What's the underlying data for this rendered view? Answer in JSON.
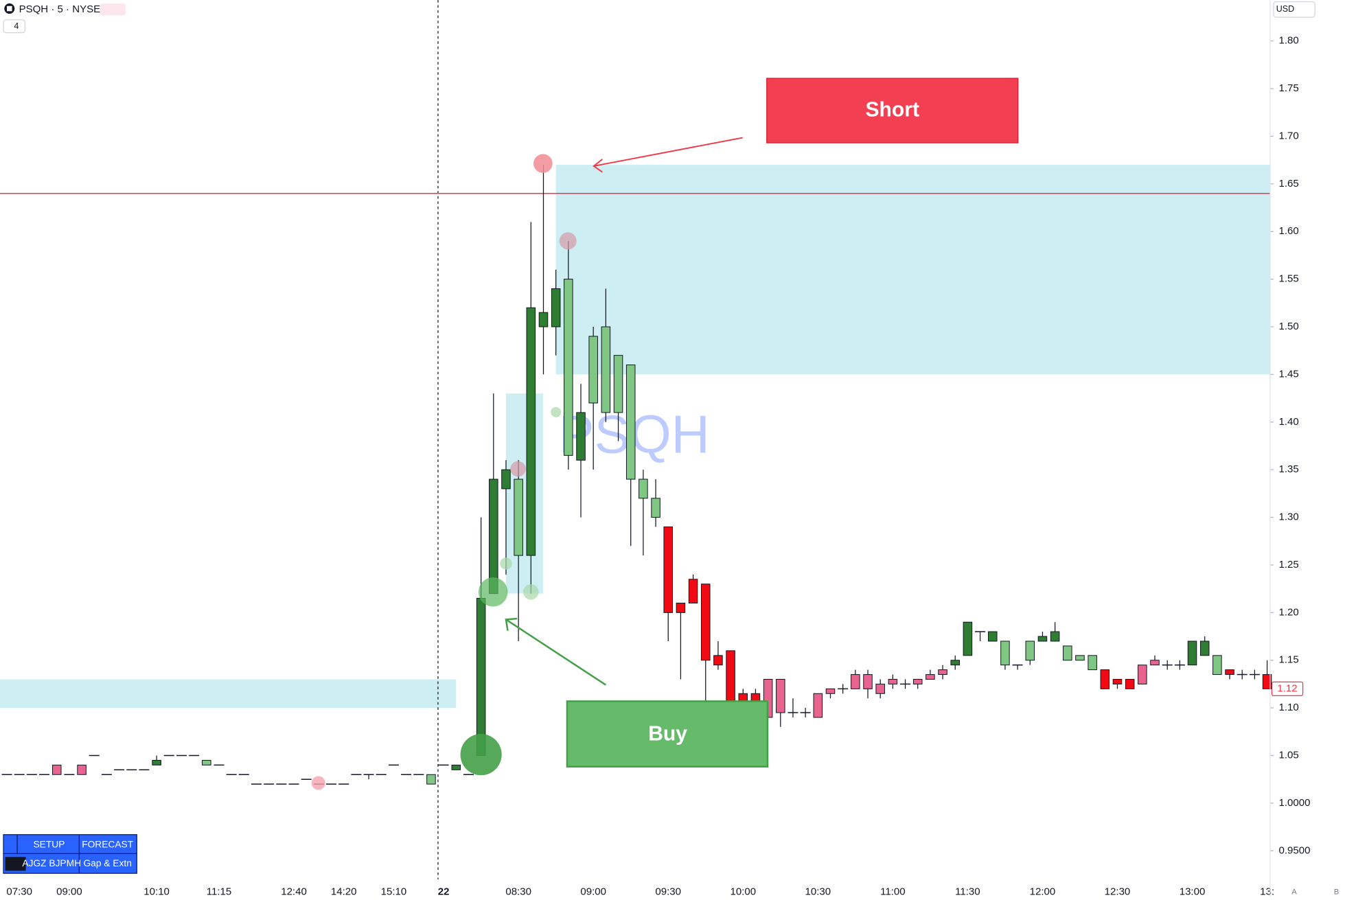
{
  "chart_data": {
    "type": "candlestick",
    "title": "PSQH · 5 · NYSE",
    "interval_badge": "4",
    "currency": "USD",
    "watermark": "PSQH",
    "categories": [
      null,
      "07:30",
      null,
      null,
      null,
      "09:00",
      null,
      null,
      null,
      null,
      null,
      null,
      "10:10",
      null,
      null,
      null,
      null,
      "11:15",
      null,
      null,
      null,
      null,
      null,
      "12:40",
      null,
      null,
      null,
      "14:20",
      null,
      null,
      null,
      "15:10",
      null,
      null,
      null,
      "22",
      null,
      null,
      null,
      null,
      null,
      "08:30",
      null,
      null,
      null,
      null,
      null,
      "09:00",
      null,
      null,
      null,
      null,
      null,
      "09:30",
      null,
      null,
      null,
      null,
      null,
      "10:00",
      null,
      null,
      null,
      null,
      null,
      "10:30",
      null,
      null,
      null,
      null,
      null,
      "11:00",
      null,
      null,
      null,
      null,
      null,
      "11:30",
      null,
      null,
      null,
      null,
      null,
      "12:00",
      null,
      null,
      null,
      null,
      null,
      "12:30",
      null,
      null,
      null,
      null,
      null,
      "13:00",
      null,
      null,
      null,
      null,
      null,
      "13:"
    ],
    "open": [
      1.03,
      1.03,
      1.03,
      1.03,
      1.03,
      1.03,
      1.03,
      1.05,
      1.03,
      1.035,
      1.035,
      1.035,
      1.04,
      1.05,
      1.05,
      1.05,
      1.045,
      1.04,
      1.03,
      1.03,
      1.02,
      1.02,
      1.02,
      1.02,
      1.025,
      1.02,
      1.02,
      1.02,
      1.03,
      1.03,
      1.03,
      1.04,
      1.03,
      1.03,
      1.03,
      1.04,
      1.035,
      1.03,
      1.05,
      1.22,
      1.33,
      1.34,
      1.26,
      1.5,
      1.5,
      1.55,
      1.36,
      1.42,
      1.5,
      1.47,
      1.46,
      1.34,
      1.32,
      1.29,
      1.21,
      1.235,
      1.23,
      1.155,
      1.16,
      1.115,
      1.115,
      1.09,
      1.13,
      1.095,
      1.095,
      1.09,
      1.115,
      1.12,
      1.12,
      1.135,
      1.115,
      1.125,
      1.125,
      1.125,
      1.13,
      1.135,
      1.145,
      1.155,
      1.18,
      1.17,
      1.17,
      1.145,
      1.15,
      1.17,
      1.17,
      1.165,
      1.155,
      1.155,
      1.14,
      1.13,
      1.13,
      1.125,
      1.145,
      1.145,
      1.145,
      1.145,
      1.155,
      1.155,
      1.14,
      1.135,
      1.135,
      1.135
    ],
    "high": [
      1.03,
      1.03,
      1.03,
      1.03,
      1.04,
      1.03,
      1.04,
      1.05,
      1.03,
      1.035,
      1.035,
      1.035,
      1.05,
      1.05,
      1.05,
      1.05,
      1.045,
      1.04,
      1.03,
      1.03,
      1.02,
      1.02,
      1.02,
      1.02,
      1.025,
      1.02,
      1.02,
      1.02,
      1.03,
      1.03,
      1.03,
      1.04,
      1.03,
      1.03,
      1.03,
      1.04,
      1.04,
      1.03,
      1.3,
      1.43,
      1.36,
      1.36,
      1.61,
      1.67,
      1.56,
      1.59,
      1.44,
      1.5,
      1.54,
      1.47,
      1.46,
      1.35,
      1.34,
      1.29,
      1.21,
      1.24,
      1.23,
      1.17,
      1.16,
      1.12,
      1.12,
      1.13,
      1.13,
      1.11,
      1.1,
      1.115,
      1.12,
      1.125,
      1.14,
      1.14,
      1.13,
      1.135,
      1.13,
      1.13,
      1.14,
      1.145,
      1.155,
      1.19,
      1.18,
      1.18,
      1.17,
      1.145,
      1.17,
      1.18,
      1.19,
      1.165,
      1.155,
      1.155,
      1.14,
      1.13,
      1.13,
      1.145,
      1.155,
      1.15,
      1.15,
      1.17,
      1.175,
      1.155,
      1.14,
      1.14,
      1.14,
      1.15
    ],
    "low": [
      1.03,
      1.03,
      1.03,
      1.03,
      1.03,
      1.03,
      1.03,
      1.05,
      1.03,
      1.035,
      1.035,
      1.035,
      1.04,
      1.05,
      1.05,
      1.05,
      1.04,
      1.04,
      1.03,
      1.03,
      1.02,
      1.02,
      1.02,
      1.02,
      1.025,
      1.02,
      1.02,
      1.02,
      1.03,
      1.025,
      1.03,
      1.04,
      1.03,
      1.03,
      1.02,
      1.04,
      1.035,
      1.03,
      1.05,
      1.22,
      1.24,
      1.17,
      1.22,
      1.45,
      1.47,
      1.35,
      1.3,
      1.35,
      1.4,
      1.38,
      1.27,
      1.26,
      1.29,
      1.17,
      1.13,
      1.21,
      1.09,
      1.14,
      1.09,
      1.09,
      1.085,
      1.09,
      1.08,
      1.09,
      1.09,
      1.09,
      1.11,
      1.115,
      1.12,
      1.11,
      1.11,
      1.12,
      1.12,
      1.12,
      1.13,
      1.13,
      1.14,
      1.155,
      1.17,
      1.17,
      1.14,
      1.14,
      1.145,
      1.17,
      1.17,
      1.15,
      1.15,
      1.14,
      1.12,
      1.12,
      1.12,
      1.125,
      1.145,
      1.14,
      1.14,
      1.145,
      1.155,
      1.135,
      1.13,
      1.13,
      1.13,
      1.12
    ],
    "close": [
      1.03,
      1.03,
      1.03,
      1.03,
      1.04,
      1.03,
      1.04,
      1.05,
      1.03,
      1.035,
      1.035,
      1.035,
      1.045,
      1.05,
      1.05,
      1.05,
      1.04,
      1.04,
      1.03,
      1.03,
      1.02,
      1.02,
      1.02,
      1.02,
      1.025,
      1.02,
      1.02,
      1.02,
      1.03,
      1.03,
      1.03,
      1.04,
      1.03,
      1.03,
      1.02,
      1.04,
      1.04,
      1.03,
      1.215,
      1.34,
      1.35,
      1.26,
      1.52,
      1.515,
      1.54,
      1.365,
      1.41,
      1.49,
      1.41,
      1.41,
      1.34,
      1.32,
      1.3,
      1.2,
      1.2,
      1.21,
      1.15,
      1.145,
      1.09,
      1.1,
      1.1,
      1.13,
      1.095,
      1.095,
      1.095,
      1.115,
      1.12,
      1.12,
      1.135,
      1.12,
      1.125,
      1.13,
      1.125,
      1.13,
      1.135,
      1.14,
      1.15,
      1.19,
      1.18,
      1.18,
      1.145,
      1.145,
      1.17,
      1.175,
      1.18,
      1.15,
      1.15,
      1.14,
      1.12,
      1.125,
      1.12,
      1.145,
      1.15,
      1.145,
      1.145,
      1.17,
      1.17,
      1.135,
      1.135,
      1.135,
      1.135,
      1.12
    ],
    "colors": [
      "#131722",
      "#131722",
      "#131722",
      "#131722",
      "#e8638e",
      "#131722",
      "#e8638e",
      "#131722",
      "#131722",
      "#131722",
      "#131722",
      "#131722",
      "#2e7d32",
      "#131722",
      "#131722",
      "#131722",
      "#81c784",
      "#131722",
      "#131722",
      "#131722",
      "#131722",
      "#131722",
      "#131722",
      "#131722",
      "#131722",
      "#131722",
      "#131722",
      "#131722",
      "#131722",
      "#131722",
      "#131722",
      "#131722",
      "#131722",
      "#131722",
      "#81c784",
      "#131722",
      "#2e7d32",
      "#131722",
      "#2e7d32",
      "#2e7d32",
      "#2e7d32",
      "#81c784",
      "#2e7d32",
      "#2e7d32",
      "#2e7d32",
      "#81c784",
      "#2e7d32",
      "#81c784",
      "#81c784",
      "#81c784",
      "#81c784",
      "#81c784",
      "#81c784",
      "#f00a14",
      "#f00a14",
      "#f00a14",
      "#f00a14",
      "#f00a14",
      "#f00a14",
      "#f00a14",
      "#f00a14",
      "#e8638e",
      "#e8638e",
      "#131722",
      "#131722",
      "#e8638e",
      "#e8638e",
      "#131722",
      "#e8638e",
      "#e8638e",
      "#e8638e",
      "#e8638e",
      "#131722",
      "#e8638e",
      "#e8638e",
      "#e8638e",
      "#2e7d32",
      "#2e7d32",
      "#131722",
      "#2e7d32",
      "#81c784",
      "#131722",
      "#81c784",
      "#2e7d32",
      "#2e7d32",
      "#81c784",
      "#81c784",
      "#81c784",
      "#f00a14",
      "#f00a14",
      "#f00a14",
      "#e8638e",
      "#e8638e",
      "#131722",
      "#131722",
      "#2e7d32",
      "#2e7d32",
      "#81c784",
      "#f00a14",
      "#131722",
      "#131722",
      "#f00a14"
    ],
    "ylim": [
      0.92,
      1.843
    ],
    "yticks": [
      {
        "value": 0.95,
        "label": "0.9500"
      },
      {
        "value": 1.0,
        "label": "1.0000"
      },
      1.05,
      {
        "value": 1.1,
        "label": "1.10"
      },
      1.15,
      {
        "value": 1.2,
        "label": "1.20"
      },
      1.25,
      {
        "value": 1.3,
        "label": "1.30"
      },
      1.35,
      {
        "value": 1.4,
        "label": "1.40"
      },
      1.45,
      {
        "value": 1.5,
        "label": "1.50"
      },
      1.55,
      {
        "value": 1.6,
        "label": "1.60"
      },
      1.65,
      {
        "value": 1.7,
        "label": "1.70"
      },
      1.75,
      {
        "value": 1.8,
        "label": "1.80"
      }
    ],
    "hline": {
      "value": 1.64,
      "color": "#f23645"
    },
    "zones": [
      {
        "low": 1.1,
        "high": 1.13,
        "color": "#cdeff3"
      },
      {
        "low": 1.45,
        "high": 1.67,
        "color": "#cdeff3"
      },
      {
        "low": 1.22,
        "high": 1.43,
        "color": "#cdeff3"
      }
    ],
    "annotations": {
      "short": "Short",
      "buy": "Buy"
    },
    "table": {
      "headers": [
        "SETUP",
        "FORECAST"
      ],
      "row": [
        "AJGZ BJPMH",
        "Gap & Extn"
      ]
    },
    "axis_buttons": [
      "A",
      "B"
    ]
  }
}
